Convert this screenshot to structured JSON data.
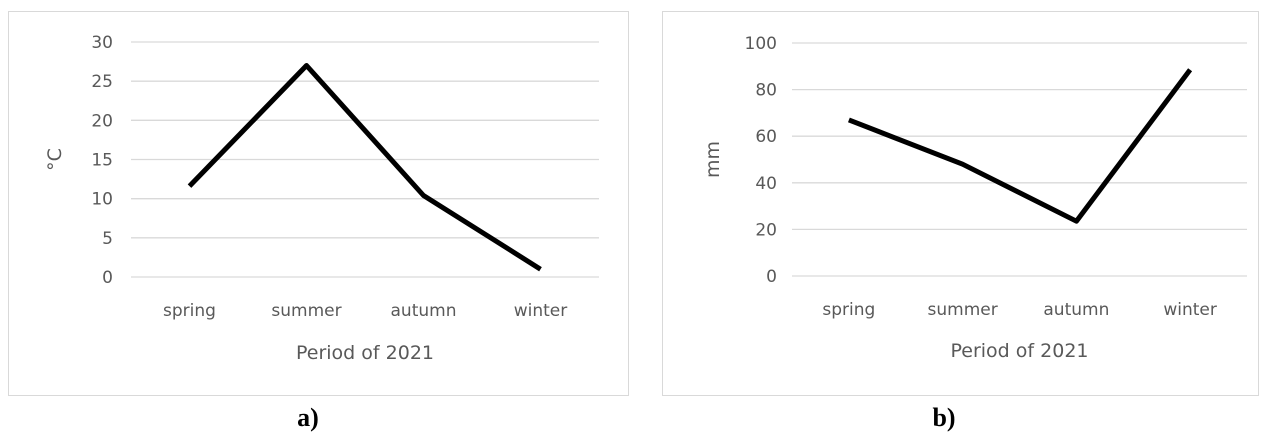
{
  "chart_data": [
    {
      "type": "line",
      "categories": [
        "spring",
        "summer",
        "autumn",
        "winter"
      ],
      "series": [
        {
          "values": [
            11.6,
            27,
            10.4,
            1.0
          ]
        }
      ],
      "xlabel": "Period of 2021",
      "ylabel": "°C",
      "ylim": [
        0,
        30
      ],
      "yticks": [
        0,
        5,
        10,
        15,
        20,
        25,
        30
      ],
      "grid": true,
      "line_color": "#000000",
      "grid_color": "#d9d9d9",
      "caption": "a)"
    },
    {
      "type": "line",
      "categories": [
        "spring",
        "summer",
        "autumn",
        "winter"
      ],
      "series": [
        {
          "values": [
            67,
            48,
            23.5,
            88.5
          ]
        }
      ],
      "xlabel": "Period of 2021",
      "ylabel": "mm",
      "ylim": [
        0,
        100
      ],
      "yticks": [
        0,
        20,
        40,
        60,
        80,
        100
      ],
      "grid": true,
      "line_color": "#000000",
      "grid_color": "#d9d9d9",
      "caption": "b)"
    }
  ]
}
